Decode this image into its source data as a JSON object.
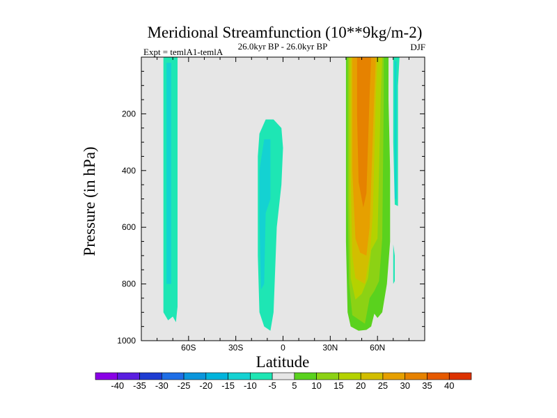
{
  "chart_data": {
    "type": "contour",
    "title": "Meridional Streamfunction (10**9kg/m-2)",
    "subtitle_left": "Expt = temlA1-temlA",
    "subtitle_center": "26.0kyr BP - 26.0kyr BP",
    "subtitle_right": "DJF",
    "xlabel": "Latitude",
    "ylabel": "Pressure (in hPa)",
    "xlim": [
      -90,
      90
    ],
    "ylim": [
      1000,
      0
    ],
    "x_ticks": [
      {
        "value": -60,
        "label": "60S"
      },
      {
        "value": -30,
        "label": "30S"
      },
      {
        "value": 0,
        "label": "0"
      },
      {
        "value": 30,
        "label": "30N"
      },
      {
        "value": 60,
        "label": "60N"
      }
    ],
    "y_ticks": [
      {
        "value": 200,
        "label": "200"
      },
      {
        "value": 400,
        "label": "400"
      },
      {
        "value": 600,
        "label": "600"
      },
      {
        "value": 800,
        "label": "800"
      },
      {
        "value": 1000,
        "label": "1000"
      }
    ],
    "colorbar": {
      "levels": [
        -40,
        -35,
        -30,
        -25,
        -20,
        -15,
        -10,
        -5,
        5,
        10,
        15,
        20,
        25,
        30,
        35,
        40
      ],
      "level_labels": [
        "-40",
        "-35",
        "-30",
        "-25",
        "-20",
        "-15",
        "-10",
        "-5",
        "5",
        "10",
        "15",
        "20",
        "25",
        "30",
        "35",
        "40"
      ],
      "colors": [
        "#8a00e6",
        "#5a1ee0",
        "#1e3cd2",
        "#1e6ee6",
        "#0a96dc",
        "#00b4dc",
        "#14d2d2",
        "#1ee6b4",
        "#e6e6e6",
        "#5ad21e",
        "#8cd214",
        "#b4d200",
        "#d2be00",
        "#e6a000",
        "#e68200",
        "#e65a00",
        "#dc3200"
      ]
    },
    "regions": [
      {
        "name": "southern-polar-band",
        "value_range": [
          -10,
          -5
        ],
        "points": [
          [
            -76,
            0
          ],
          [
            -67,
            0
          ],
          [
            -67,
            880
          ],
          [
            -68,
            935
          ],
          [
            -70,
            915
          ],
          [
            -73,
            928
          ],
          [
            -76,
            900
          ]
        ]
      },
      {
        "name": "southern-polar-band-core",
        "value_range": [
          -15,
          -10
        ],
        "points": [
          [
            -74,
            20
          ],
          [
            -71,
            20
          ],
          [
            -71,
            800
          ],
          [
            -74,
            800
          ]
        ]
      },
      {
        "name": "equatorial-cell",
        "value_range": [
          -10,
          -5
        ],
        "points": [
          [
            -15,
            270
          ],
          [
            -11,
            220
          ],
          [
            -6,
            220
          ],
          [
            -1,
            250
          ],
          [
            0,
            320
          ],
          [
            -1,
            450
          ],
          [
            -4,
            600
          ],
          [
            -5,
            750
          ],
          [
            -6,
            900
          ],
          [
            -8,
            965
          ],
          [
            -12,
            950
          ],
          [
            -15,
            900
          ],
          [
            -16,
            700
          ],
          [
            -16,
            500
          ],
          [
            -16,
            350
          ]
        ]
      },
      {
        "name": "equatorial-cell-core",
        "value_range": [
          -15,
          -10
        ],
        "points": [
          [
            -12,
            290
          ],
          [
            -8,
            290
          ],
          [
            -8,
            500
          ],
          [
            -11,
            550
          ],
          [
            -12,
            800
          ],
          [
            -14,
            820
          ],
          [
            -15,
            560
          ],
          [
            -15,
            400
          ]
        ]
      },
      {
        "name": "northern-cell-outer",
        "value_range": [
          5,
          10
        ],
        "points": [
          [
            40,
            0
          ],
          [
            67,
            0
          ],
          [
            67,
            150
          ],
          [
            68,
            400
          ],
          [
            68,
            650
          ],
          [
            66,
            800
          ],
          [
            63,
            900
          ],
          [
            60,
            920
          ],
          [
            58,
            905
          ],
          [
            56,
            950
          ],
          [
            53,
            962
          ],
          [
            48,
            965
          ],
          [
            43,
            950
          ],
          [
            41,
            900
          ],
          [
            40,
            650
          ]
        ]
      },
      {
        "name": "northern-cell-10",
        "value_range": [
          10,
          15
        ],
        "points": [
          [
            41,
            0
          ],
          [
            64,
            0
          ],
          [
            64,
            150
          ],
          [
            63,
            640
          ],
          [
            61,
            790
          ],
          [
            58,
            825
          ],
          [
            55,
            850
          ],
          [
            52,
            940
          ],
          [
            48,
            925
          ],
          [
            44,
            910
          ],
          [
            42,
            800
          ],
          [
            41,
            500
          ]
        ]
      },
      {
        "name": "northern-cell-15",
        "value_range": [
          15,
          20
        ],
        "points": [
          [
            42,
            0
          ],
          [
            63,
            0
          ],
          [
            62,
            150
          ],
          [
            60,
            640
          ],
          [
            56,
            680
          ],
          [
            54,
            780
          ],
          [
            50,
            835
          ],
          [
            46,
            855
          ],
          [
            43,
            780
          ],
          [
            42,
            500
          ]
        ]
      },
      {
        "name": "northern-cell-20",
        "value_range": [
          20,
          25
        ],
        "points": [
          [
            43,
            0
          ],
          [
            60,
            0
          ],
          [
            59,
            130
          ],
          [
            57,
            560
          ],
          [
            55,
            700
          ],
          [
            52,
            800
          ],
          [
            46,
            780
          ],
          [
            44,
            700
          ],
          [
            43,
            400
          ]
        ]
      },
      {
        "name": "northern-cell-25",
        "value_range": [
          25,
          30
        ],
        "points": [
          [
            44,
            0
          ],
          [
            59,
            0
          ],
          [
            58,
            130
          ],
          [
            55,
            600
          ],
          [
            53,
            700
          ],
          [
            49,
            690
          ],
          [
            46,
            640
          ],
          [
            44,
            400
          ]
        ]
      },
      {
        "name": "northern-cell-30",
        "value_range": [
          30,
          35
        ],
        "points": [
          [
            47,
            0
          ],
          [
            56,
            0
          ],
          [
            55,
            130
          ],
          [
            53,
            480
          ],
          [
            51,
            530
          ],
          [
            48,
            440
          ],
          [
            47,
            200
          ]
        ]
      },
      {
        "name": "northern-polar-band",
        "value_range": [
          -10,
          -5
        ],
        "points": [
          [
            70,
            0
          ],
          [
            74,
            0
          ],
          [
            73,
            100
          ],
          [
            73,
            525
          ],
          [
            71,
            520
          ],
          [
            70,
            300
          ]
        ]
      },
      {
        "name": "northern-polar-band-core",
        "value_range": [
          -15,
          -10
        ],
        "points": [
          [
            71,
            15
          ],
          [
            72,
            15
          ],
          [
            72,
            500
          ],
          [
            71,
            500
          ]
        ]
      },
      {
        "name": "northern-polar-blip",
        "value_range": [
          -10,
          -5
        ],
        "points": [
          [
            70,
            660
          ],
          [
            71,
            700
          ],
          [
            71,
            790
          ],
          [
            70,
            800
          ]
        ]
      }
    ]
  }
}
